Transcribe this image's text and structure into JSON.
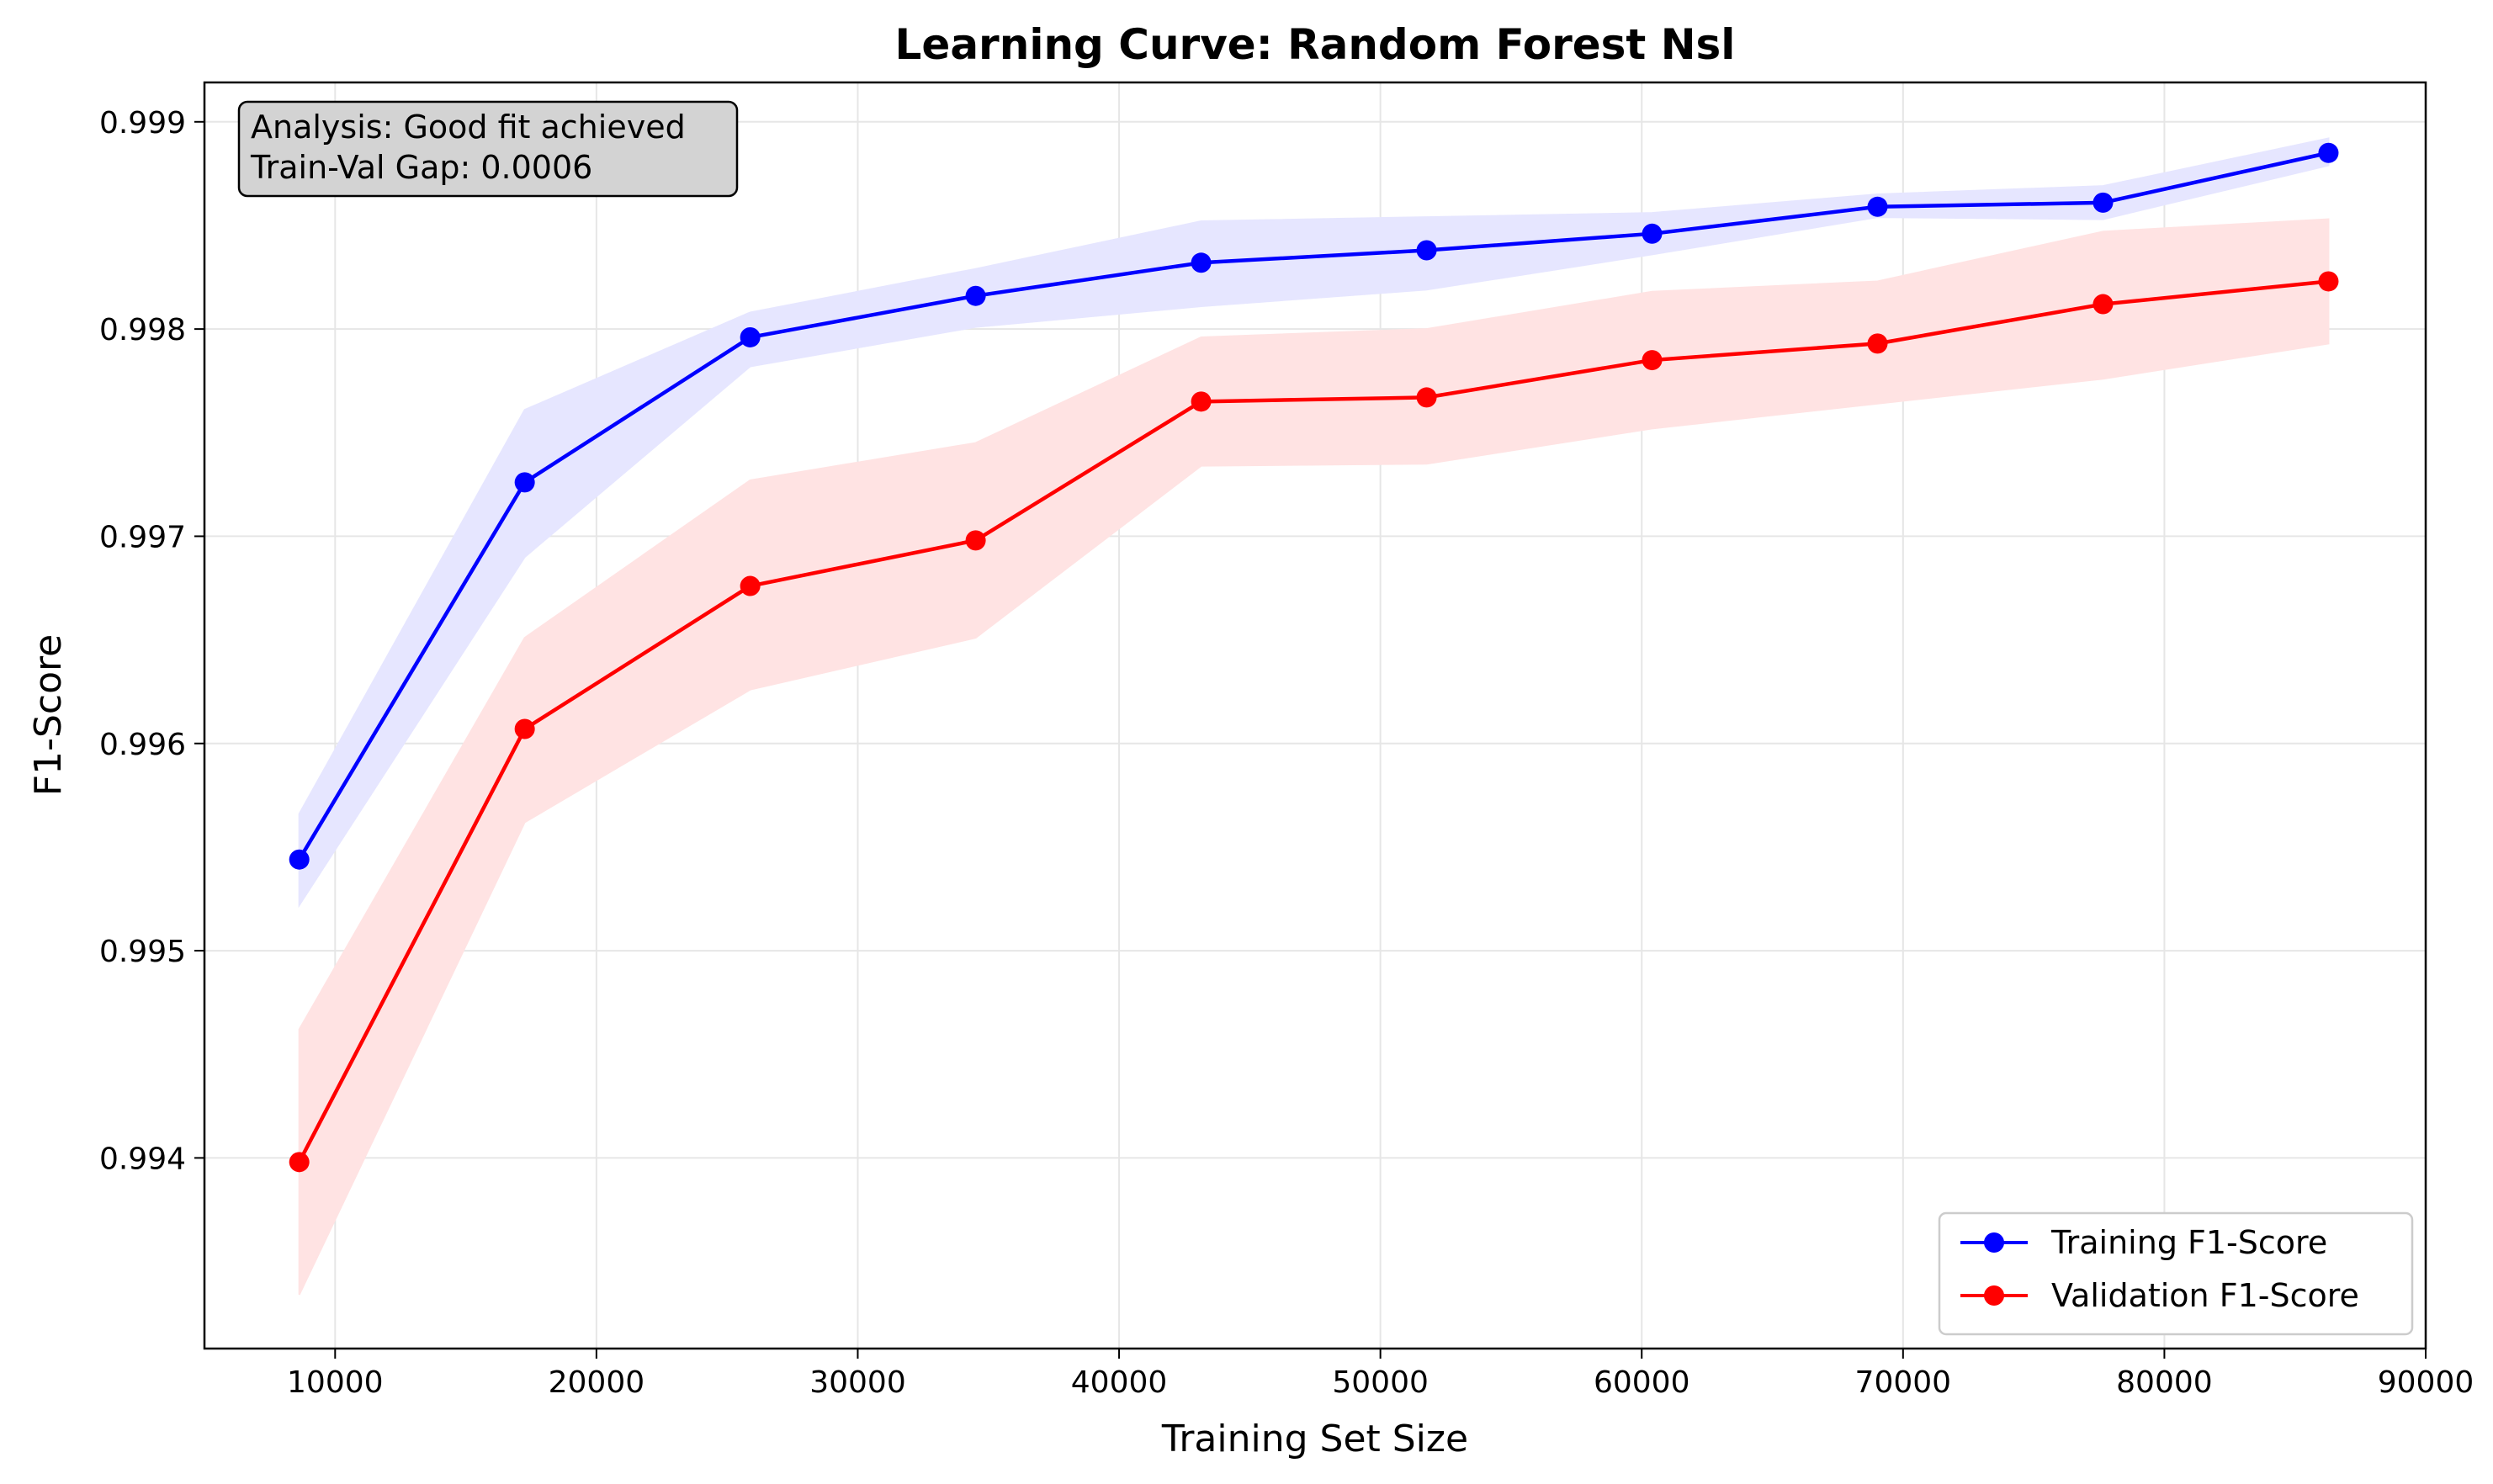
{
  "chart_data": {
    "type": "line",
    "title": "Learning Curve: Random Forest Nsl",
    "xlabel": "Training Set Size",
    "ylabel": "F1-Score",
    "xlim": [
      5000,
      90000
    ],
    "ylim": [
      0.99308,
      0.99919
    ],
    "xticks": [
      10000,
      20000,
      30000,
      40000,
      50000,
      60000,
      70000,
      80000,
      90000
    ],
    "yticks": [
      0.994,
      0.995,
      0.996,
      0.997,
      0.998,
      0.999
    ],
    "grid": true,
    "legend_position": "lower-right",
    "x": [
      8628,
      17256,
      25884,
      34512,
      43140,
      51768,
      60396,
      69024,
      77652,
      86280
    ],
    "series": [
      {
        "name": "Training F1-Score",
        "color": "#0000ff",
        "band_color": "#e6e6ff",
        "values": [
          0.99544,
          0.99726,
          0.99796,
          0.99816,
          0.99832,
          0.99838,
          0.99846,
          0.99859,
          0.99861,
          0.99885
        ],
        "upper": [
          0.99566,
          0.99761,
          0.99808,
          0.99829,
          0.99852,
          0.99854,
          0.99856,
          0.99865,
          0.99869,
          0.99892
        ],
        "lower": [
          0.99522,
          0.9969,
          0.99782,
          0.99801,
          0.99811,
          0.99819,
          0.99836,
          0.99854,
          0.99853,
          0.99879
        ]
      },
      {
        "name": "Validation F1-Score",
        "color": "#ff0000",
        "band_color": "#ffe3e3",
        "values": [
          0.99398,
          0.99607,
          0.99676,
          0.99698,
          0.99765,
          0.99767,
          0.99785,
          0.99793,
          0.99812,
          0.99823
        ],
        "upper": [
          0.99462,
          0.99651,
          0.99727,
          0.99745,
          0.99796,
          0.998,
          0.99818,
          0.99823,
          0.99847,
          0.99853
        ],
        "lower": [
          0.99334,
          0.99562,
          0.99626,
          0.99651,
          0.99734,
          0.99735,
          0.99752,
          0.99764,
          0.99776,
          0.99793
        ]
      }
    ],
    "annotation": [
      "Analysis: Good fit achieved",
      "Train-Val Gap: 0.0006"
    ]
  }
}
